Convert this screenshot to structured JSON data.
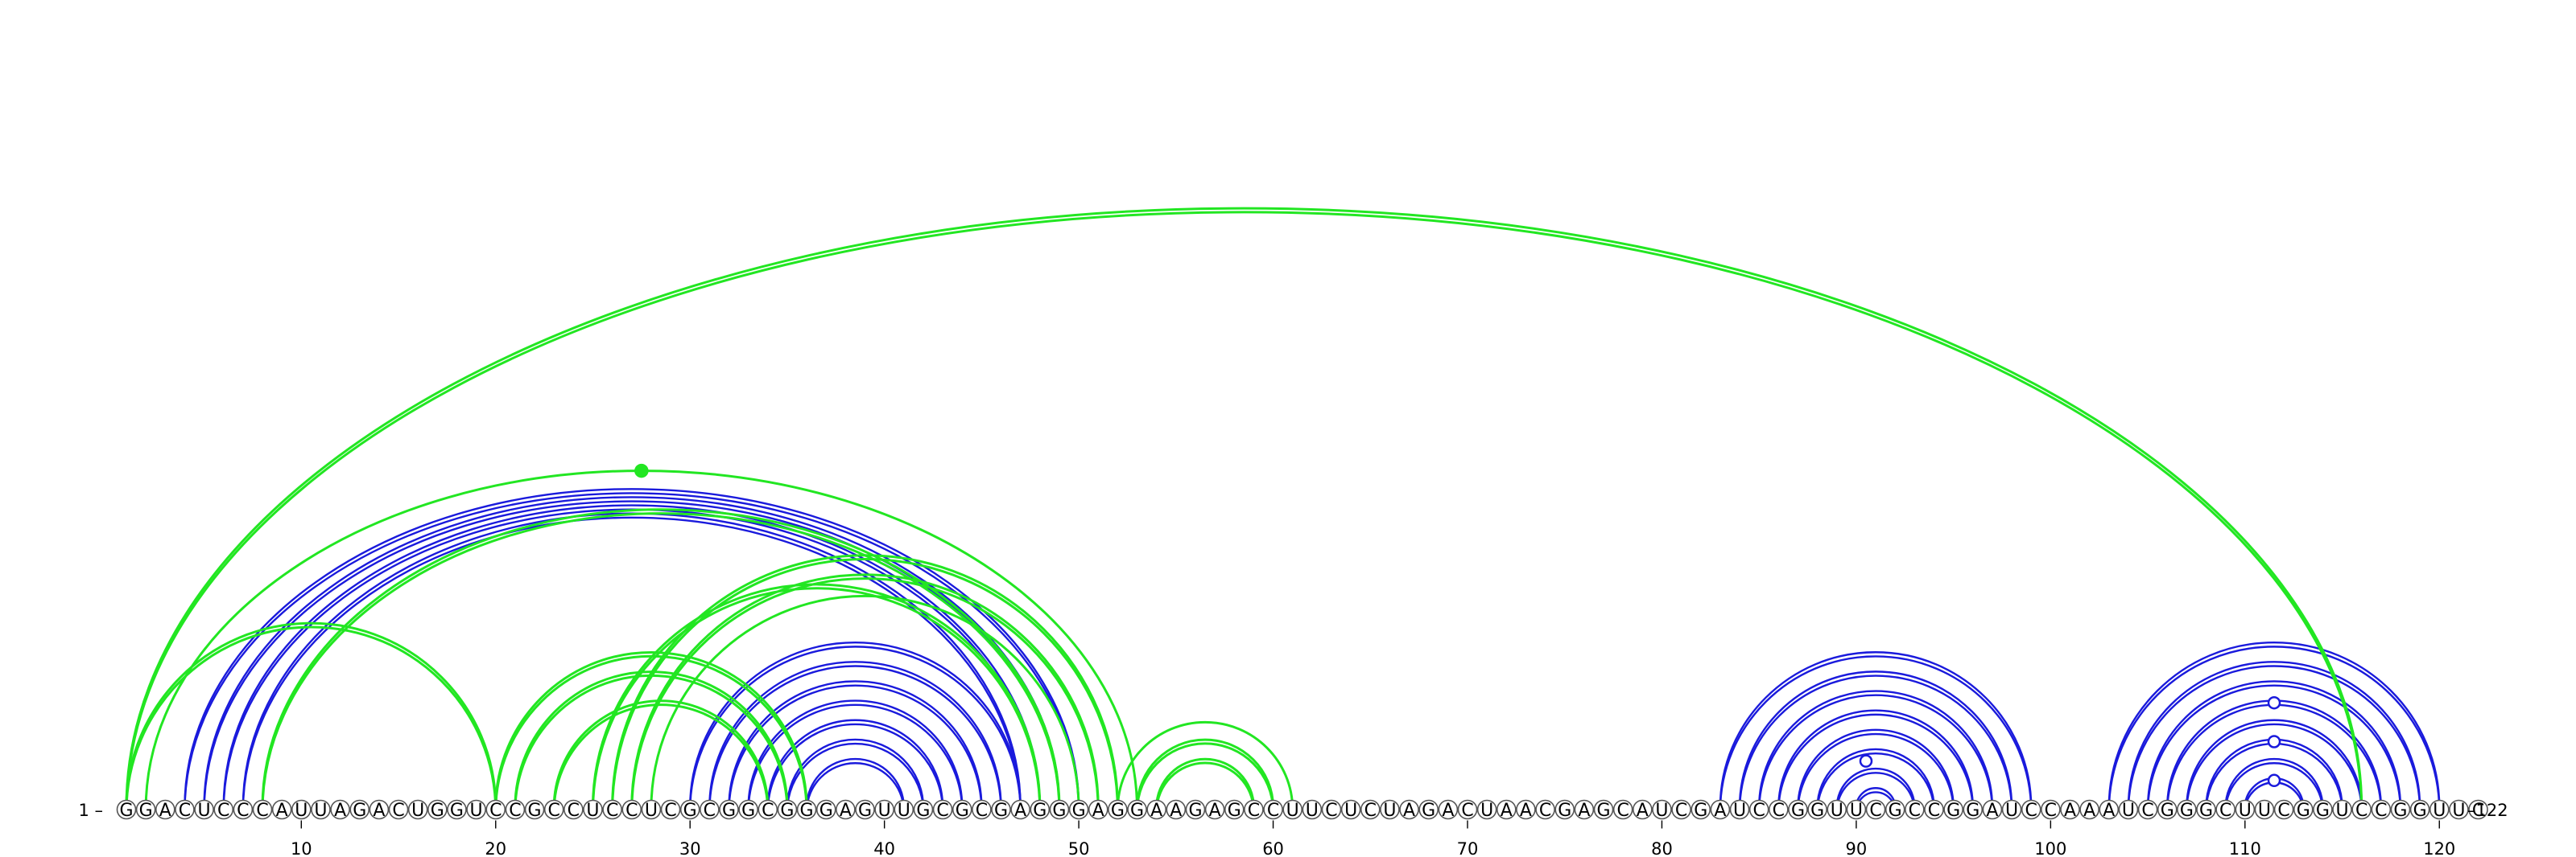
{
  "sequence": "GGACUCCCAUUAGACUGGUCCGCCUCCUCGCGGCGGGAGUUGCGCGAGGGAGGAAGAGCCUUCUCUAGACUAACGAGCAUCGAUCCGGUUCGCCGGAUCCAAAUCGGGCUUCGGUCCGGUUC",
  "start_label": "1 –",
  "end_label": "–122",
  "tick_positions": [
    10,
    20,
    30,
    40,
    50,
    60,
    70,
    80,
    90,
    100,
    110,
    120
  ],
  "tick_labels": [
    "10",
    "20",
    "30",
    "40",
    "50",
    "60",
    "70",
    "80",
    "90",
    "100",
    "110",
    "120"
  ],
  "colors": {
    "blue": "#1a1adc",
    "green": "#22e622",
    "node_fill": "#ffffff",
    "node_stroke": "#555555"
  },
  "blue_helices": [
    {
      "i": 4,
      "j": 50,
      "n": 4
    },
    {
      "i": 30,
      "j": 47,
      "n": 7
    },
    {
      "i": 83,
      "j": 99,
      "n": 8
    },
    {
      "i": 103,
      "j": 120,
      "n": 8
    }
  ],
  "green_helices": [
    {
      "i": 1,
      "j": 116,
      "n": 1,
      "double": true
    },
    {
      "i": 2,
      "j": 53,
      "n": 1,
      "double": false
    },
    {
      "i": 8,
      "j": 49,
      "n": 1,
      "double": true
    },
    {
      "i": 1,
      "j": 20,
      "n": 1,
      "double": true
    },
    {
      "i": 20,
      "j": 36,
      "n": 1,
      "double": true
    },
    {
      "i": 21,
      "j": 35,
      "n": 1,
      "double": true
    },
    {
      "i": 23,
      "j": 34,
      "n": 1,
      "double": true
    },
    {
      "i": 25,
      "j": 48,
      "n": 1,
      "double": true
    },
    {
      "i": 26,
      "j": 52,
      "n": 1,
      "double": true
    },
    {
      "i": 27,
      "j": 51,
      "n": 1,
      "double": true
    },
    {
      "i": 28,
      "j": 50,
      "n": 1,
      "double": false
    },
    {
      "i": 52,
      "j": 61,
      "n": 1,
      "double": false
    },
    {
      "i": 53,
      "j": 60,
      "n": 1,
      "double": true
    },
    {
      "i": 54,
      "j": 59,
      "n": 1,
      "double": true
    }
  ],
  "markers": [
    {
      "a": 88,
      "b": 93,
      "style": "open",
      "color": "blue"
    },
    {
      "a": 110,
      "b": 113,
      "style": "open",
      "color": "blue"
    },
    {
      "a": 108,
      "b": 115,
      "style": "open",
      "color": "blue"
    },
    {
      "a": 106,
      "b": 117,
      "style": "open",
      "color": "blue"
    },
    {
      "a": 2,
      "b": 53,
      "style": "filled",
      "color": "green"
    }
  ]
}
